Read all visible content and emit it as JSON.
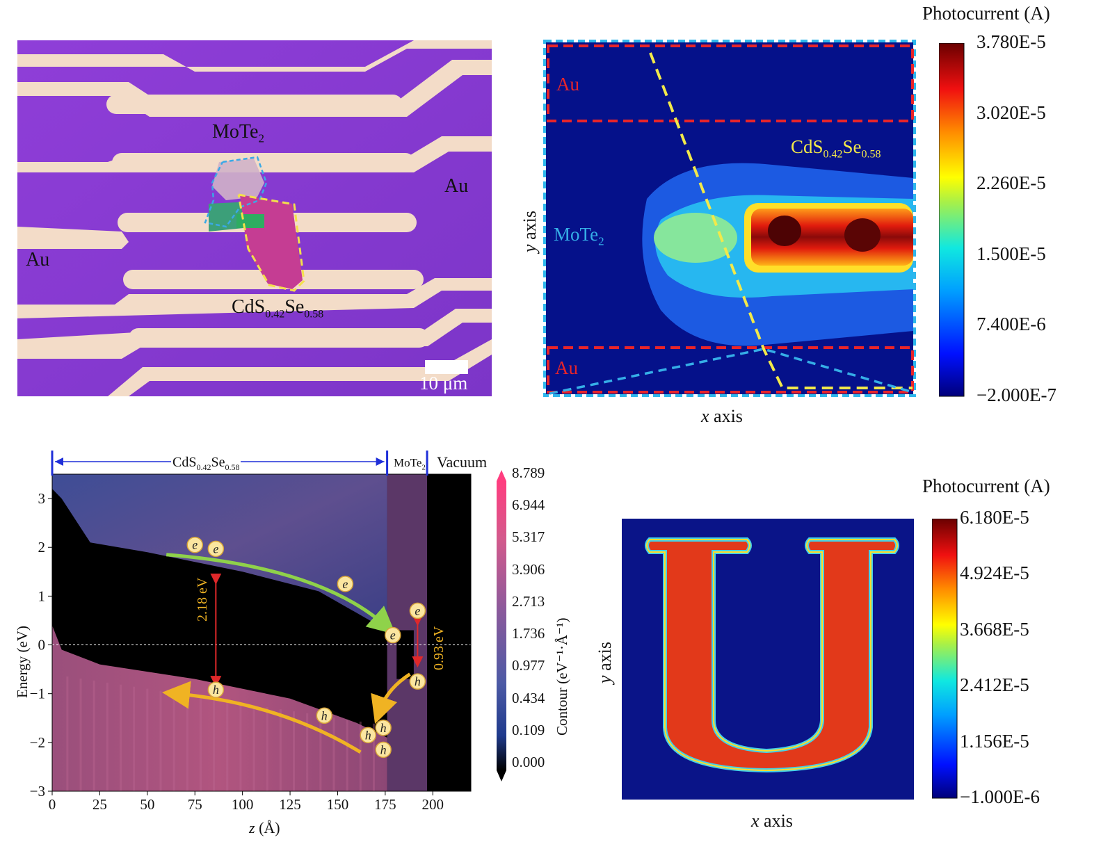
{
  "panel_a": {
    "label_mote2_base": "MoTe",
    "label_mote2_sub": "2",
    "label_au_right": "Au",
    "label_au_left": "Au",
    "label_cdsse_base1": "CdS",
    "label_cdsse_sub1": "0.42",
    "label_cdsse_base2": "Se",
    "label_cdsse_sub2": "0.58",
    "scale_bar": "10 μm",
    "colors": {
      "substrate": "#8a3bd6",
      "gold": "#f2dcc8",
      "mote2_outline": "#3aa9e6",
      "cdsse_outline": "#f4e04a"
    }
  },
  "panel_b": {
    "cb_title": "Photocurrent (A)",
    "cb_ticks": [
      "3.780E-5",
      "3.020E-5",
      "2.260E-5",
      "1.500E-5",
      "7.400E-6",
      "−2.000E-7"
    ],
    "label_au_top": "Au",
    "label_au_bottom": "Au",
    "label_mote2_base": "MoTe",
    "label_mote2_sub": "2",
    "label_cdsse_base1": "CdS",
    "label_cdsse_sub1": "0.42",
    "label_cdsse_base2": "Se",
    "label_cdsse_sub2": "0.58",
    "xlabel_var": "x",
    "xlabel_rest": " axis",
    "ylabel_var": "y",
    "ylabel_rest": " axis"
  },
  "panel_c": {
    "chart_data": {
      "type": "heatmap",
      "xlabel_var": "z",
      "xlabel_unit": " (Å)",
      "ylabel": "Energy (eV)",
      "xlim": [
        0,
        220
      ],
      "ylim": [
        -3,
        3.5
      ],
      "x_ticks": [
        "0",
        "25",
        "50",
        "75",
        "100",
        "125",
        "150",
        "175",
        "200"
      ],
      "y_ticks": [
        "3",
        "2",
        "1",
        "0",
        "−1",
        "−2",
        "−3"
      ],
      "cb_title": "Contour (eV⁻¹·Å⁻¹)",
      "cb_ticks": [
        "8.789",
        "6.944",
        "5.317",
        "3.906",
        "2.713",
        "1.736",
        "0.977",
        "0.434",
        "0.109",
        "0.000"
      ],
      "regions": [
        {
          "label_base": "CdS",
          "label_sub1": "0.42",
          "label_base2": "Se",
          "label_sub2": "0.58",
          "from": 0,
          "to": 176
        },
        {
          "label_base": "MoTe",
          "label_sub1": "2",
          "from": 176,
          "to": 197
        },
        {
          "label_base": "Vacuum",
          "from": 197,
          "to": 220
        }
      ],
      "annotations": {
        "gap_cdsse": "2.18 eV",
        "gap_mote2": "0.93 eV",
        "electron": "e",
        "hole": "h"
      },
      "colors": {
        "electron_arrow": "#8fd24a",
        "hole_arrow": "#f0b323",
        "gap_arrow": "#e0282a"
      }
    }
  },
  "panel_d": {
    "cb_title": "Photocurrent (A)",
    "cb_ticks": [
      "6.180E-5",
      "4.924E-5",
      "3.668E-5",
      "2.412E-5",
      "1.156E-5",
      "−1.000E-6"
    ],
    "xlabel_var": "x",
    "xlabel_rest": " axis",
    "ylabel_var": "y",
    "ylabel_rest": " axis"
  }
}
